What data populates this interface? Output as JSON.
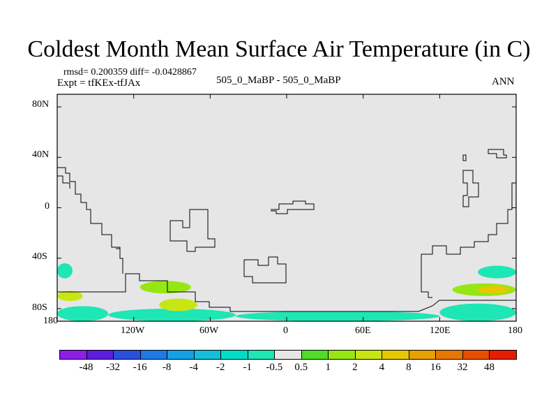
{
  "chart_data": {
    "type": "heatmap",
    "title": "Coldest Month Mean Surface Air Temperature (in C)",
    "stats_line": "rmsd= 0.200359 diff= -0.0428867",
    "expt_line": "Expt = tfKEx-tfJAx",
    "case_line": "505_0_MaBP - 505_0_MaBP",
    "period": "ANN",
    "x_ticks": [
      "180",
      "120W",
      "60W",
      "0",
      "60E",
      "120E",
      "180"
    ],
    "y_ticks": [
      "80N",
      "40N",
      "0",
      "40S",
      "80S"
    ],
    "xlim": [
      -180,
      180
    ],
    "ylim": [
      -90,
      90
    ],
    "colorbar_labels": [
      "-48",
      "-32",
      "-16",
      "-8",
      "-4",
      "-2",
      "-1",
      "-0.5",
      "0.5",
      "1",
      "2",
      "4",
      "8",
      "16",
      "32",
      "48"
    ],
    "colorbar_colors": [
      "#8c1ee6",
      "#5a1edc",
      "#2850dc",
      "#1e78e6",
      "#14a0e6",
      "#14beda",
      "#00dcc8",
      "#1ee6b4",
      "#e6e6e6",
      "#50dc28",
      "#96e614",
      "#c8e614",
      "#e6c800",
      "#e6a000",
      "#e67800",
      "#e65000",
      "#e61e00"
    ],
    "background_color": "#e6e6e6",
    "anomaly_regions": [
      {
        "lon": [
          -180,
          -168
        ],
        "lat": [
          -56,
          -44
        ],
        "value": -1
      },
      {
        "lon": [
          -180,
          -140
        ],
        "lat": [
          -90,
          -78
        ],
        "value": -1
      },
      {
        "lon": [
          -140,
          -40
        ],
        "lat": [
          -90,
          -80
        ],
        "value": -1
      },
      {
        "lon": [
          -40,
          120
        ],
        "lat": [
          -90,
          -82
        ],
        "value": -1
      },
      {
        "lon": [
          120,
          180
        ],
        "lat": [
          -90,
          -76
        ],
        "value": -1
      },
      {
        "lon": [
          150,
          180
        ],
        "lat": [
          -56,
          -46
        ],
        "value": -1
      },
      {
        "lon": [
          -180,
          -160
        ],
        "lat": [
          -74,
          -66
        ],
        "value": 2
      },
      {
        "lon": [
          -115,
          -75
        ],
        "lat": [
          -68,
          -58
        ],
        "value": 1
      },
      {
        "lon": [
          -100,
          -70
        ],
        "lat": [
          -82,
          -72
        ],
        "value": 2
      },
      {
        "lon": [
          130,
          180
        ],
        "lat": [
          -70,
          -60
        ],
        "value": 1
      },
      {
        "lon": [
          150,
          175
        ],
        "lat": [
          -68,
          -62
        ],
        "value": 4
      }
    ]
  }
}
